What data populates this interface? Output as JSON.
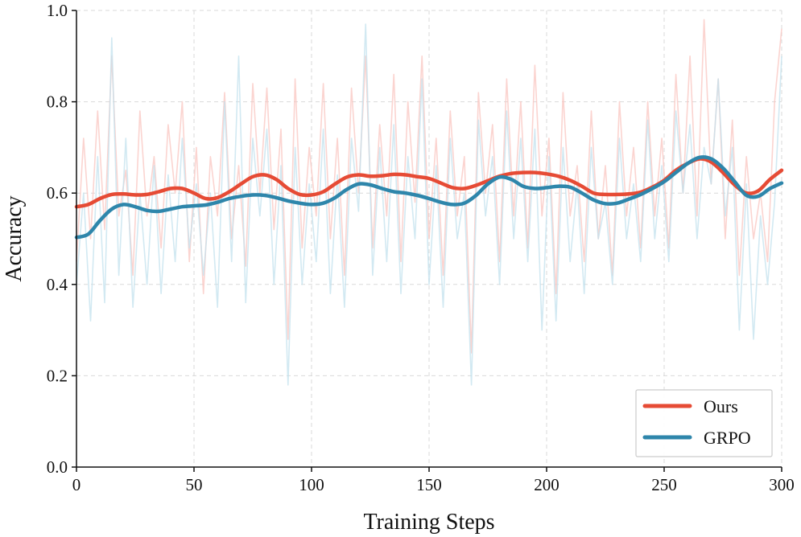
{
  "chart_data": {
    "type": "line",
    "title": "",
    "xlabel": "Training Steps",
    "ylabel": "Accuracy",
    "xlim": [
      0,
      300
    ],
    "ylim": [
      0.0,
      1.0
    ],
    "xticks": [
      0,
      50,
      100,
      150,
      200,
      250,
      300
    ],
    "xtick_labels": [
      "0",
      "50",
      "100",
      "150",
      "200",
      "250",
      "300"
    ],
    "yticks": [
      0.0,
      0.2,
      0.4,
      0.6,
      0.8,
      1.0
    ],
    "ytick_labels": [
      "0.0",
      "0.2",
      "0.4",
      "0.6",
      "0.8",
      "1.0"
    ],
    "grid": true,
    "legend_position": "bottom-right",
    "series": [
      {
        "name": "Ours",
        "color": "#e64b35",
        "raw_color": "#f9c6c0",
        "smoothed": {
          "x": [
            0,
            5,
            10,
            15,
            20,
            25,
            30,
            35,
            40,
            45,
            50,
            55,
            60,
            65,
            70,
            75,
            80,
            85,
            90,
            95,
            100,
            105,
            110,
            115,
            120,
            125,
            130,
            135,
            140,
            145,
            150,
            155,
            160,
            165,
            170,
            175,
            180,
            185,
            190,
            195,
            200,
            205,
            210,
            215,
            220,
            225,
            230,
            235,
            240,
            245,
            250,
            255,
            260,
            265,
            270,
            275,
            280,
            285,
            290,
            295,
            300
          ],
          "y": [
            0.57,
            0.575,
            0.588,
            0.597,
            0.598,
            0.596,
            0.597,
            0.603,
            0.61,
            0.61,
            0.6,
            0.588,
            0.59,
            0.603,
            0.62,
            0.636,
            0.64,
            0.63,
            0.61,
            0.597,
            0.596,
            0.603,
            0.62,
            0.635,
            0.64,
            0.637,
            0.638,
            0.641,
            0.64,
            0.636,
            0.632,
            0.622,
            0.612,
            0.61,
            0.617,
            0.627,
            0.637,
            0.643,
            0.645,
            0.645,
            0.642,
            0.637,
            0.628,
            0.615,
            0.6,
            0.597,
            0.597,
            0.598,
            0.602,
            0.613,
            0.628,
            0.65,
            0.665,
            0.675,
            0.668,
            0.645,
            0.618,
            0.6,
            0.605,
            0.63,
            0.65
          ]
        },
        "raw": {
          "x": [
            0,
            3,
            6,
            9,
            12,
            15,
            18,
            21,
            24,
            27,
            30,
            33,
            36,
            39,
            42,
            45,
            48,
            51,
            54,
            57,
            60,
            63,
            66,
            69,
            72,
            75,
            78,
            81,
            84,
            87,
            90,
            93,
            96,
            99,
            102,
            105,
            108,
            111,
            114,
            117,
            120,
            123,
            126,
            129,
            132,
            135,
            138,
            141,
            144,
            147,
            150,
            153,
            156,
            159,
            162,
            165,
            168,
            171,
            174,
            177,
            180,
            183,
            186,
            189,
            192,
            195,
            198,
            201,
            204,
            207,
            210,
            213,
            216,
            219,
            222,
            225,
            228,
            231,
            234,
            237,
            240,
            243,
            246,
            249,
            252,
            255,
            258,
            261,
            264,
            267,
            270,
            273,
            276,
            279,
            282,
            285,
            288,
            291,
            294,
            297,
            300
          ],
          "y": [
            0.45,
            0.72,
            0.5,
            0.78,
            0.52,
            0.9,
            0.55,
            0.65,
            0.42,
            0.78,
            0.55,
            0.68,
            0.48,
            0.75,
            0.6,
            0.8,
            0.45,
            0.7,
            0.38,
            0.68,
            0.55,
            0.82,
            0.5,
            0.66,
            0.44,
            0.84,
            0.6,
            0.83,
            0.52,
            0.74,
            0.28,
            0.85,
            0.48,
            0.7,
            0.55,
            0.84,
            0.5,
            0.72,
            0.42,
            0.83,
            0.6,
            0.9,
            0.48,
            0.75,
            0.55,
            0.86,
            0.45,
            0.8,
            0.58,
            0.9,
            0.5,
            0.72,
            0.42,
            0.78,
            0.55,
            0.68,
            0.25,
            0.82,
            0.6,
            0.75,
            0.45,
            0.85,
            0.55,
            0.8,
            0.48,
            0.88,
            0.55,
            0.72,
            0.38,
            0.82,
            0.55,
            0.66,
            0.45,
            0.78,
            0.5,
            0.66,
            0.42,
            0.8,
            0.55,
            0.7,
            0.48,
            0.8,
            0.55,
            0.72,
            0.48,
            0.86,
            0.6,
            0.9,
            0.55,
            0.98,
            0.62,
            0.85,
            0.5,
            0.76,
            0.42,
            0.68,
            0.5,
            0.6,
            0.45,
            0.8,
            0.96
          ]
        }
      },
      {
        "name": "GRPO",
        "color": "#2e86ab",
        "raw_color": "#c3e2ee",
        "smoothed": {
          "x": [
            0,
            5,
            10,
            15,
            20,
            25,
            30,
            35,
            40,
            45,
            50,
            55,
            60,
            65,
            70,
            75,
            80,
            85,
            90,
            95,
            100,
            105,
            110,
            115,
            120,
            125,
            130,
            135,
            140,
            145,
            150,
            155,
            160,
            165,
            170,
            175,
            180,
            185,
            190,
            195,
            200,
            205,
            210,
            215,
            220,
            225,
            230,
            235,
            240,
            245,
            250,
            255,
            260,
            265,
            270,
            275,
            280,
            285,
            290,
            295,
            300
          ],
          "y": [
            0.503,
            0.51,
            0.54,
            0.565,
            0.575,
            0.57,
            0.562,
            0.56,
            0.565,
            0.57,
            0.572,
            0.574,
            0.58,
            0.588,
            0.593,
            0.596,
            0.595,
            0.59,
            0.583,
            0.578,
            0.575,
            0.578,
            0.59,
            0.608,
            0.62,
            0.618,
            0.61,
            0.603,
            0.6,
            0.595,
            0.588,
            0.58,
            0.575,
            0.578,
            0.595,
            0.62,
            0.635,
            0.63,
            0.615,
            0.61,
            0.612,
            0.615,
            0.613,
            0.6,
            0.585,
            0.577,
            0.578,
            0.587,
            0.597,
            0.61,
            0.625,
            0.645,
            0.665,
            0.678,
            0.675,
            0.655,
            0.625,
            0.595,
            0.593,
            0.61,
            0.622
          ]
        },
        "raw": {
          "x": [
            0,
            3,
            6,
            9,
            12,
            15,
            18,
            21,
            24,
            27,
            30,
            33,
            36,
            39,
            42,
            45,
            48,
            51,
            54,
            57,
            60,
            63,
            66,
            69,
            72,
            75,
            78,
            81,
            84,
            87,
            90,
            93,
            96,
            99,
            102,
            105,
            108,
            111,
            114,
            117,
            120,
            123,
            126,
            129,
            132,
            135,
            138,
            141,
            144,
            147,
            150,
            153,
            156,
            159,
            162,
            165,
            168,
            171,
            174,
            177,
            180,
            183,
            186,
            189,
            192,
            195,
            198,
            201,
            204,
            207,
            210,
            213,
            216,
            219,
            222,
            225,
            228,
            231,
            234,
            237,
            240,
            243,
            246,
            249,
            252,
            255,
            258,
            261,
            264,
            267,
            270,
            273,
            276,
            279,
            282,
            285,
            288,
            291,
            294,
            297,
            300
          ],
          "y": [
            0.4,
            0.6,
            0.32,
            0.68,
            0.36,
            0.94,
            0.42,
            0.72,
            0.35,
            0.6,
            0.4,
            0.66,
            0.38,
            0.64,
            0.45,
            0.72,
            0.48,
            0.62,
            0.42,
            0.6,
            0.35,
            0.8,
            0.45,
            0.9,
            0.36,
            0.72,
            0.55,
            0.74,
            0.4,
            0.66,
            0.18,
            0.7,
            0.4,
            0.62,
            0.45,
            0.74,
            0.38,
            0.64,
            0.35,
            0.72,
            0.56,
            0.97,
            0.42,
            0.7,
            0.45,
            0.75,
            0.38,
            0.68,
            0.5,
            0.85,
            0.4,
            0.66,
            0.35,
            0.72,
            0.5,
            0.6,
            0.18,
            0.76,
            0.55,
            0.68,
            0.4,
            0.78,
            0.5,
            0.72,
            0.45,
            0.74,
            0.3,
            0.68,
            0.32,
            0.7,
            0.45,
            0.62,
            0.38,
            0.7,
            0.5,
            0.58,
            0.4,
            0.72,
            0.5,
            0.62,
            0.45,
            0.76,
            0.5,
            0.66,
            0.45,
            0.78,
            0.6,
            0.75,
            0.5,
            0.7,
            0.62,
            0.85,
            0.55,
            0.7,
            0.3,
            0.62,
            0.28,
            0.55,
            0.4,
            0.58,
            0.9
          ]
        }
      }
    ]
  }
}
